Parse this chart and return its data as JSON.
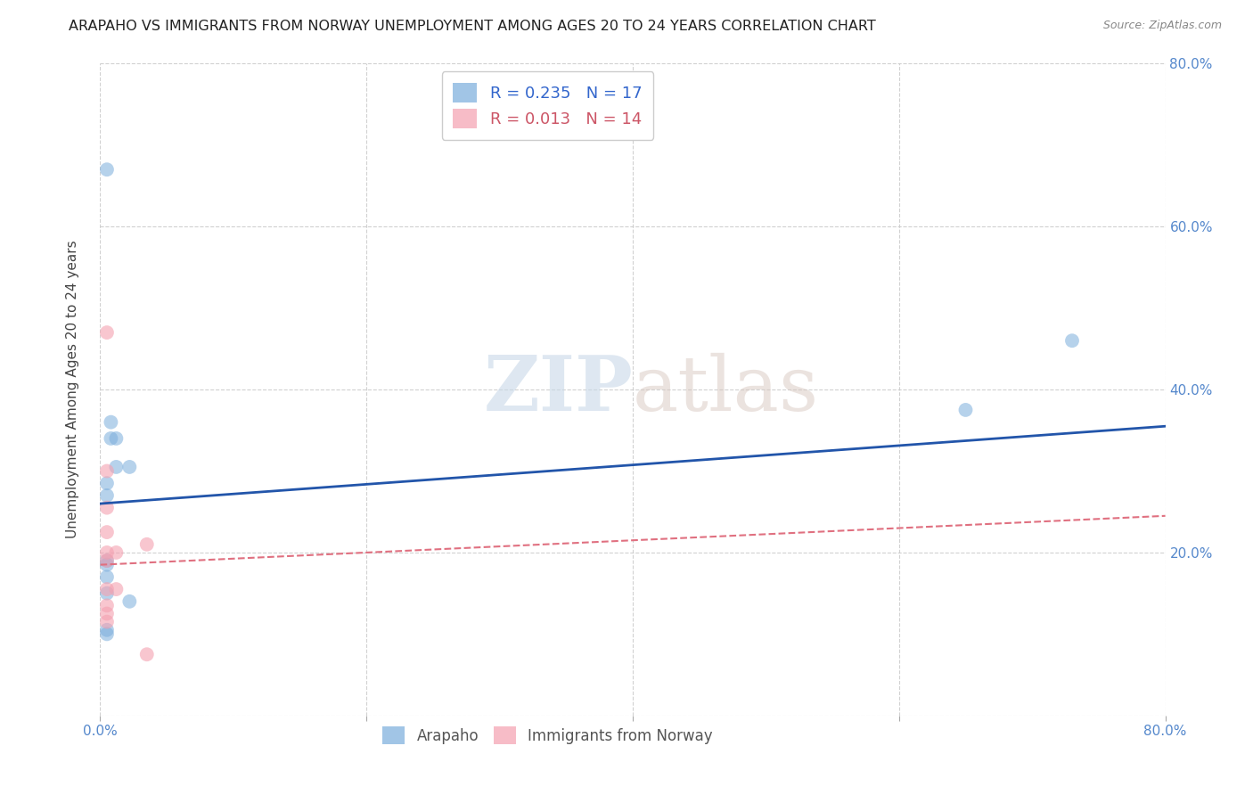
{
  "title": "ARAPAHO VS IMMIGRANTS FROM NORWAY UNEMPLOYMENT AMONG AGES 20 TO 24 YEARS CORRELATION CHART",
  "source": "Source: ZipAtlas.com",
  "ylabel": "Unemployment Among Ages 20 to 24 years",
  "xlim": [
    0.0,
    0.8
  ],
  "ylim": [
    0.0,
    0.8
  ],
  "xticks": [
    0.0,
    0.2,
    0.4,
    0.6,
    0.8
  ],
  "yticks": [
    0.0,
    0.2,
    0.4,
    0.6,
    0.8
  ],
  "xticklabels": [
    "0.0%",
    "",
    "",
    "",
    "80.0%"
  ],
  "yticklabels_right": [
    "",
    "20.0%",
    "40.0%",
    "60.0%",
    "80.0%"
  ],
  "grid_color": "#cccccc",
  "background_color": "#ffffff",
  "arapaho_color": "#7aaddc",
  "norway_color": "#f4a0b0",
  "arapaho_line_color": "#2255aa",
  "norway_line_color": "#e07080",
  "legend_R_arapaho": "0.235",
  "legend_N_arapaho": "17",
  "legend_R_norway": "0.013",
  "legend_N_norway": "14",
  "legend_label_arapaho": "Arapaho",
  "legend_label_norway": "Immigrants from Norway",
  "watermark_zip": "ZIP",
  "watermark_atlas": "atlas",
  "arapaho_x": [
    0.005,
    0.008,
    0.008,
    0.012,
    0.012,
    0.005,
    0.005,
    0.005,
    0.005,
    0.005,
    0.005,
    0.022,
    0.022,
    0.73,
    0.65,
    0.005,
    0.005
  ],
  "arapaho_y": [
    0.67,
    0.36,
    0.34,
    0.34,
    0.305,
    0.285,
    0.19,
    0.27,
    0.17,
    0.15,
    0.1,
    0.305,
    0.14,
    0.46,
    0.375,
    0.185,
    0.105
  ],
  "norway_x": [
    0.005,
    0.005,
    0.005,
    0.005,
    0.005,
    0.005,
    0.005,
    0.005,
    0.005,
    0.005,
    0.012,
    0.012,
    0.035,
    0.035
  ],
  "norway_y": [
    0.47,
    0.3,
    0.255,
    0.225,
    0.2,
    0.19,
    0.155,
    0.135,
    0.125,
    0.115,
    0.2,
    0.155,
    0.21,
    0.075
  ],
  "arapaho_trendline_x": [
    0.0,
    0.8
  ],
  "arapaho_trendline_y": [
    0.26,
    0.355
  ],
  "norway_trendline_x": [
    0.0,
    0.8
  ],
  "norway_trendline_y": [
    0.185,
    0.245
  ]
}
